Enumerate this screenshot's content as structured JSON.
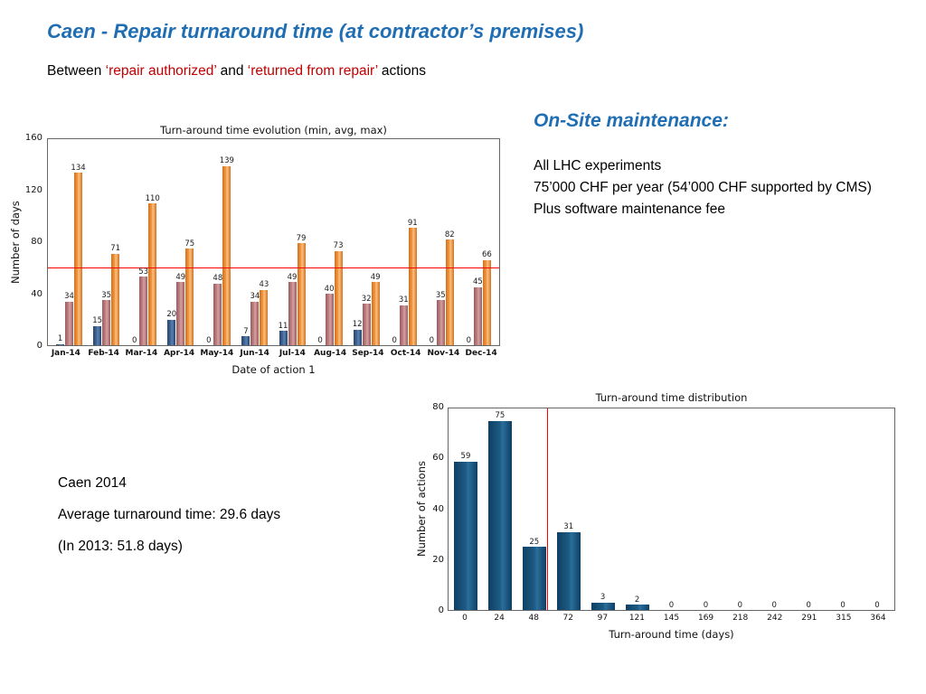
{
  "slide": {
    "title": "Caen - Repair turnaround time (at contractor’s premises)",
    "subtitle": {
      "prefix": "Between ",
      "term1": "‘repair authorized’",
      "middle": " and ",
      "term2": "‘returned from repair’",
      "suffix": " actions"
    },
    "onsite": {
      "heading": "On-Site maintenance:",
      "lines": [
        "All LHC experiments",
        "75’000 CHF per year (54’000 CHF supported by CMS)",
        "Plus software maintenance fee"
      ]
    },
    "summary": {
      "line1": "Caen 2014",
      "line2": "Average turnaround time: 29.6 days",
      "line3": "(In 2013: 51.8 days)"
    }
  },
  "colors": {
    "heading_blue": "#1F6EB4",
    "accent_red": "#C00000",
    "bar_min_blue": "#2E5380",
    "bar_avg_rose": "#BC8184",
    "bar_max_orange": "#F79646",
    "bar_distribution_blue": "#17547C",
    "reference_line_red": "#FF0000"
  },
  "chart_data": [
    {
      "type": "bar",
      "title": "Turn-around time evolution (min, avg, max)",
      "xlabel": "Date of action 1",
      "ylabel": "Number of days",
      "ylim": [
        0,
        160
      ],
      "yticks": [
        0,
        40,
        80,
        120,
        160
      ],
      "legend": "none",
      "grid": false,
      "categories": [
        "Jan-14",
        "Feb-14",
        "Mar-14",
        "Apr-14",
        "May-14",
        "Jun-14",
        "Jul-14",
        "Aug-14",
        "Sep-14",
        "Oct-14",
        "Nov-14",
        "Dec-14"
      ],
      "series": [
        {
          "name": "min",
          "values": [
            1,
            15,
            0,
            20,
            0,
            7,
            11,
            0,
            12,
            0,
            0,
            0
          ]
        },
        {
          "name": "avg",
          "values": [
            34,
            35,
            53,
            49,
            48,
            34,
            49,
            40,
            32,
            31,
            35,
            45
          ]
        },
        {
          "name": "max",
          "values": [
            134,
            71,
            110,
            75,
            139,
            43,
            79,
            73,
            49,
            91,
            82,
            66
          ]
        }
      ],
      "ref_line": {
        "type": "hline",
        "y": 60
      }
    },
    {
      "type": "bar",
      "title": "Turn-around time distribution",
      "xlabel": "Turn-around time (days)",
      "ylabel": "Number of actions",
      "ylim": [
        0,
        80
      ],
      "yticks": [
        0,
        20,
        40,
        60,
        80
      ],
      "legend": "none",
      "grid": false,
      "categories": [
        "0",
        "24",
        "48",
        "72",
        "97",
        "121",
        "145",
        "169",
        "218",
        "242",
        "291",
        "315",
        "364"
      ],
      "values": [
        59,
        75,
        25,
        31,
        3,
        2,
        0,
        0,
        0,
        0,
        0,
        0,
        0
      ],
      "ref_line": {
        "type": "vline",
        "x_frac": 0.222
      }
    }
  ]
}
